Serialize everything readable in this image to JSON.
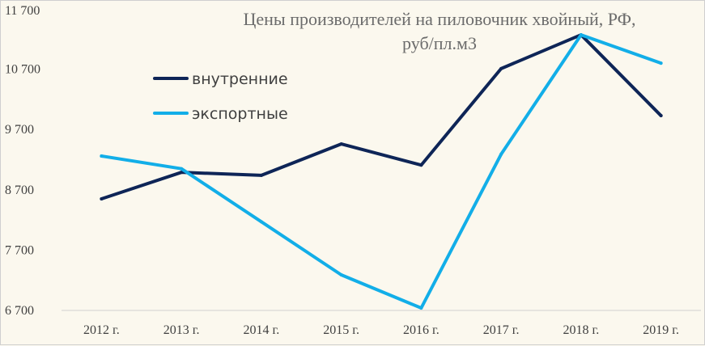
{
  "chart_data": {
    "type": "line",
    "title_lines": [
      "Цены производителей на пиловочник хвойный, РФ,",
      "руб/пл.м3"
    ],
    "categories": [
      "2012 г.",
      "2013 г.",
      "2014 г.",
      "2015 г.",
      "2016 г.",
      "2017 г.",
      "2018 г.",
      "2019 г."
    ],
    "series": [
      {
        "name": "внутренние",
        "color": "#0e2557",
        "values": [
          8550,
          8990,
          8940,
          9460,
          9110,
          10710,
          11270,
          9930
        ]
      },
      {
        "name": "экспортные",
        "color": "#12aee8",
        "values": [
          9260,
          9050,
          8170,
          7290,
          6740,
          9290,
          11270,
          10800
        ]
      }
    ],
    "y_ticks": [
      "6 700",
      "7 700",
      "8 700",
      "9 700",
      "10 700",
      "11 700"
    ],
    "y_tick_values": [
      6700,
      7700,
      8700,
      9700,
      10700,
      11700
    ],
    "ylim": [
      6700,
      11700
    ],
    "grid": false,
    "legend_position": "top-left"
  }
}
